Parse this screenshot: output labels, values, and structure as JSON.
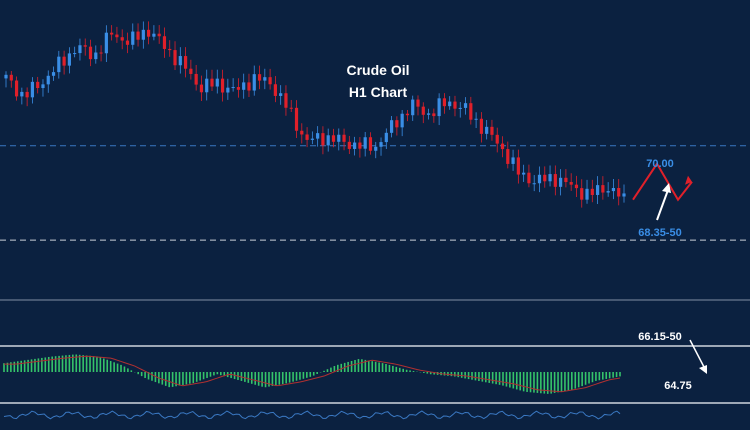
{
  "chart_data": {
    "type": "candlestick",
    "title": "Crude Oil",
    "subtitle": "H1 Chart",
    "ylim": [
      64.3,
      71.2
    ],
    "colors": {
      "background": "#0b2140",
      "up": "#3a8ee6",
      "down": "#e0202a",
      "level_line": "#3a78c2",
      "projection_red": "#e0202a",
      "projection_white": "#ffffff",
      "macd_hist": "#35c46a",
      "signal_line": "#b03030"
    },
    "price_path": [
      69.9,
      69.5,
      69.8,
      70.2,
      70.6,
      70.4,
      70.9,
      70.7,
      71.0,
      70.6,
      70.2,
      69.7,
      69.8,
      69.6,
      69.9,
      69.8,
      69.2,
      68.5,
      68.6,
      68.5,
      68.4,
      68.4,
      68.9,
      69.3,
      69.1,
      69.4,
      69.2,
      68.8,
      68.4,
      67.8,
      67.6,
      67.7,
      67.5,
      67.3,
      67.5,
      67.2
    ],
    "levels": [
      {
        "value": 70.0,
        "label": "70.00"
      },
      {
        "value": 68.4,
        "label": "68.35-50"
      },
      {
        "value": 66.3,
        "label": "66.15-50"
      },
      {
        "value": 64.75,
        "label": "64.75"
      }
    ],
    "projection_red": [
      67.2,
      68.0,
      67.2,
      67.6
    ],
    "macd_wave": [
      0.4,
      0.55,
      0.7,
      0.8,
      0.7,
      0.3,
      -0.3,
      -0.7,
      -0.5,
      -0.1,
      -0.4,
      -0.7,
      -0.5,
      -0.2,
      0.3,
      0.6,
      0.4,
      0.1,
      -0.1,
      -0.2,
      -0.4,
      -0.6,
      -0.9,
      -1.0,
      -0.8,
      -0.4,
      -0.2
    ]
  }
}
